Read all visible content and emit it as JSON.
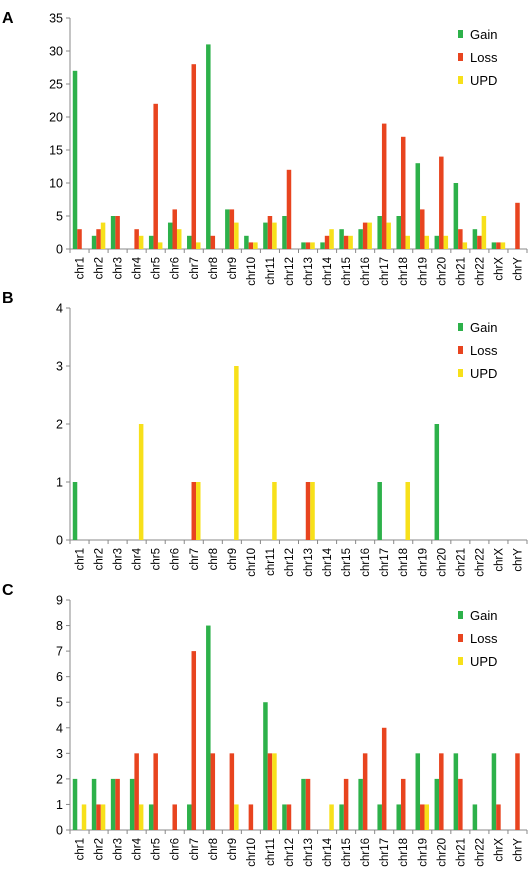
{
  "colors": {
    "gain": "#2db14a",
    "loss": "#e8441f",
    "upd": "#f7e01a"
  },
  "chart_data": [
    {
      "panel_label": "A",
      "type": "bar",
      "categories": [
        "chr1",
        "chr2",
        "chr3",
        "chr4",
        "chr5",
        "chr6",
        "chr7",
        "chr8",
        "chr9",
        "chr10",
        "chr11",
        "chr12",
        "chr13",
        "chr14",
        "chr15",
        "chr16",
        "chr17",
        "chr18",
        "chr19",
        "chr20",
        "chr21",
        "chr22",
        "chrX",
        "chrY"
      ],
      "series": [
        {
          "name": "Gain",
          "values": [
            27,
            2,
            5,
            0,
            2,
            4,
            2,
            31,
            6,
            2,
            4,
            5,
            1,
            1,
            3,
            3,
            5,
            5,
            13,
            2,
            10,
            3,
            1,
            0
          ]
        },
        {
          "name": "Loss",
          "values": [
            3,
            3,
            5,
            3,
            22,
            6,
            28,
            2,
            6,
            1,
            5,
            12,
            1,
            2,
            2,
            4,
            19,
            17,
            6,
            14,
            3,
            2,
            1,
            7
          ]
        },
        {
          "name": "UPD",
          "values": [
            0,
            4,
            0,
            2,
            1,
            3,
            1,
            0,
            4,
            1,
            4,
            0,
            1,
            3,
            2,
            4,
            4,
            2,
            2,
            2,
            1,
            5,
            1,
            0
          ]
        }
      ],
      "yticks": [
        "0",
        "5",
        "10",
        "15",
        "20",
        "25",
        "30",
        "35"
      ],
      "ylim": [
        0,
        35
      ],
      "grid": false,
      "legend_position": "top-right"
    },
    {
      "panel_label": "B",
      "type": "bar",
      "categories": [
        "chr1",
        "chr2",
        "chr3",
        "chr4",
        "chr5",
        "chr6",
        "chr7",
        "chr8",
        "chr9",
        "chr10",
        "chr11",
        "chr12",
        "chr13",
        "chr14",
        "chr15",
        "chr16",
        "chr17",
        "chr18",
        "chr19",
        "chr20",
        "chr21",
        "chr22",
        "chrX",
        "chrY"
      ],
      "series": [
        {
          "name": "Gain",
          "values": [
            1,
            0,
            0,
            0,
            0,
            0,
            0,
            0,
            0,
            0,
            0,
            0,
            0,
            0,
            0,
            0,
            1,
            0,
            0,
            2,
            0,
            0,
            0,
            0
          ]
        },
        {
          "name": "Loss",
          "values": [
            0,
            0,
            0,
            0,
            0,
            0,
            1,
            0,
            0,
            0,
            0,
            0,
            1,
            0,
            0,
            0,
            0,
            0,
            0,
            0,
            0,
            0,
            0,
            0
          ]
        },
        {
          "name": "UPD",
          "values": [
            0,
            0,
            0,
            2,
            0,
            0,
            1,
            0,
            3,
            0,
            1,
            0,
            1,
            0,
            0,
            0,
            0,
            1,
            0,
            0,
            0,
            0,
            0,
            0
          ]
        }
      ],
      "yticks": [
        "0",
        "1",
        "2",
        "3",
        "4"
      ],
      "ylim": [
        0,
        4
      ],
      "grid": false,
      "legend_position": "top-right"
    },
    {
      "panel_label": "C",
      "type": "bar",
      "categories": [
        "chr1",
        "chr2",
        "chr3",
        "chr4",
        "chr5",
        "chr6",
        "chr7",
        "chr8",
        "chr9",
        "chr10",
        "chr11",
        "chr12",
        "chr13",
        "chr14",
        "chr15",
        "chr16",
        "chr17",
        "chr18",
        "chr19",
        "chr20",
        "chr21",
        "chr22",
        "chrX",
        "chrY"
      ],
      "series": [
        {
          "name": "Gain",
          "values": [
            2,
            2,
            2,
            2,
            1,
            0,
            1,
            8,
            0,
            0,
            5,
            1,
            2,
            0,
            1,
            2,
            1,
            1,
            3,
            2,
            3,
            1,
            3,
            0
          ]
        },
        {
          "name": "Loss",
          "values": [
            0,
            1,
            2,
            3,
            3,
            1,
            7,
            3,
            3,
            1,
            3,
            1,
            2,
            0,
            2,
            3,
            4,
            2,
            1,
            3,
            2,
            0,
            1,
            3
          ]
        },
        {
          "name": "UPD",
          "values": [
            1,
            1,
            0,
            1,
            0,
            0,
            0,
            0,
            1,
            0,
            3,
            0,
            0,
            1,
            0,
            0,
            0,
            0,
            1,
            0,
            0,
            0,
            0,
            0
          ]
        }
      ],
      "yticks": [
        "0",
        "1",
        "2",
        "3",
        "4",
        "5",
        "6",
        "7",
        "8",
        "9"
      ],
      "ylim": [
        0,
        9
      ],
      "grid": false,
      "legend_position": "top-right"
    }
  ]
}
